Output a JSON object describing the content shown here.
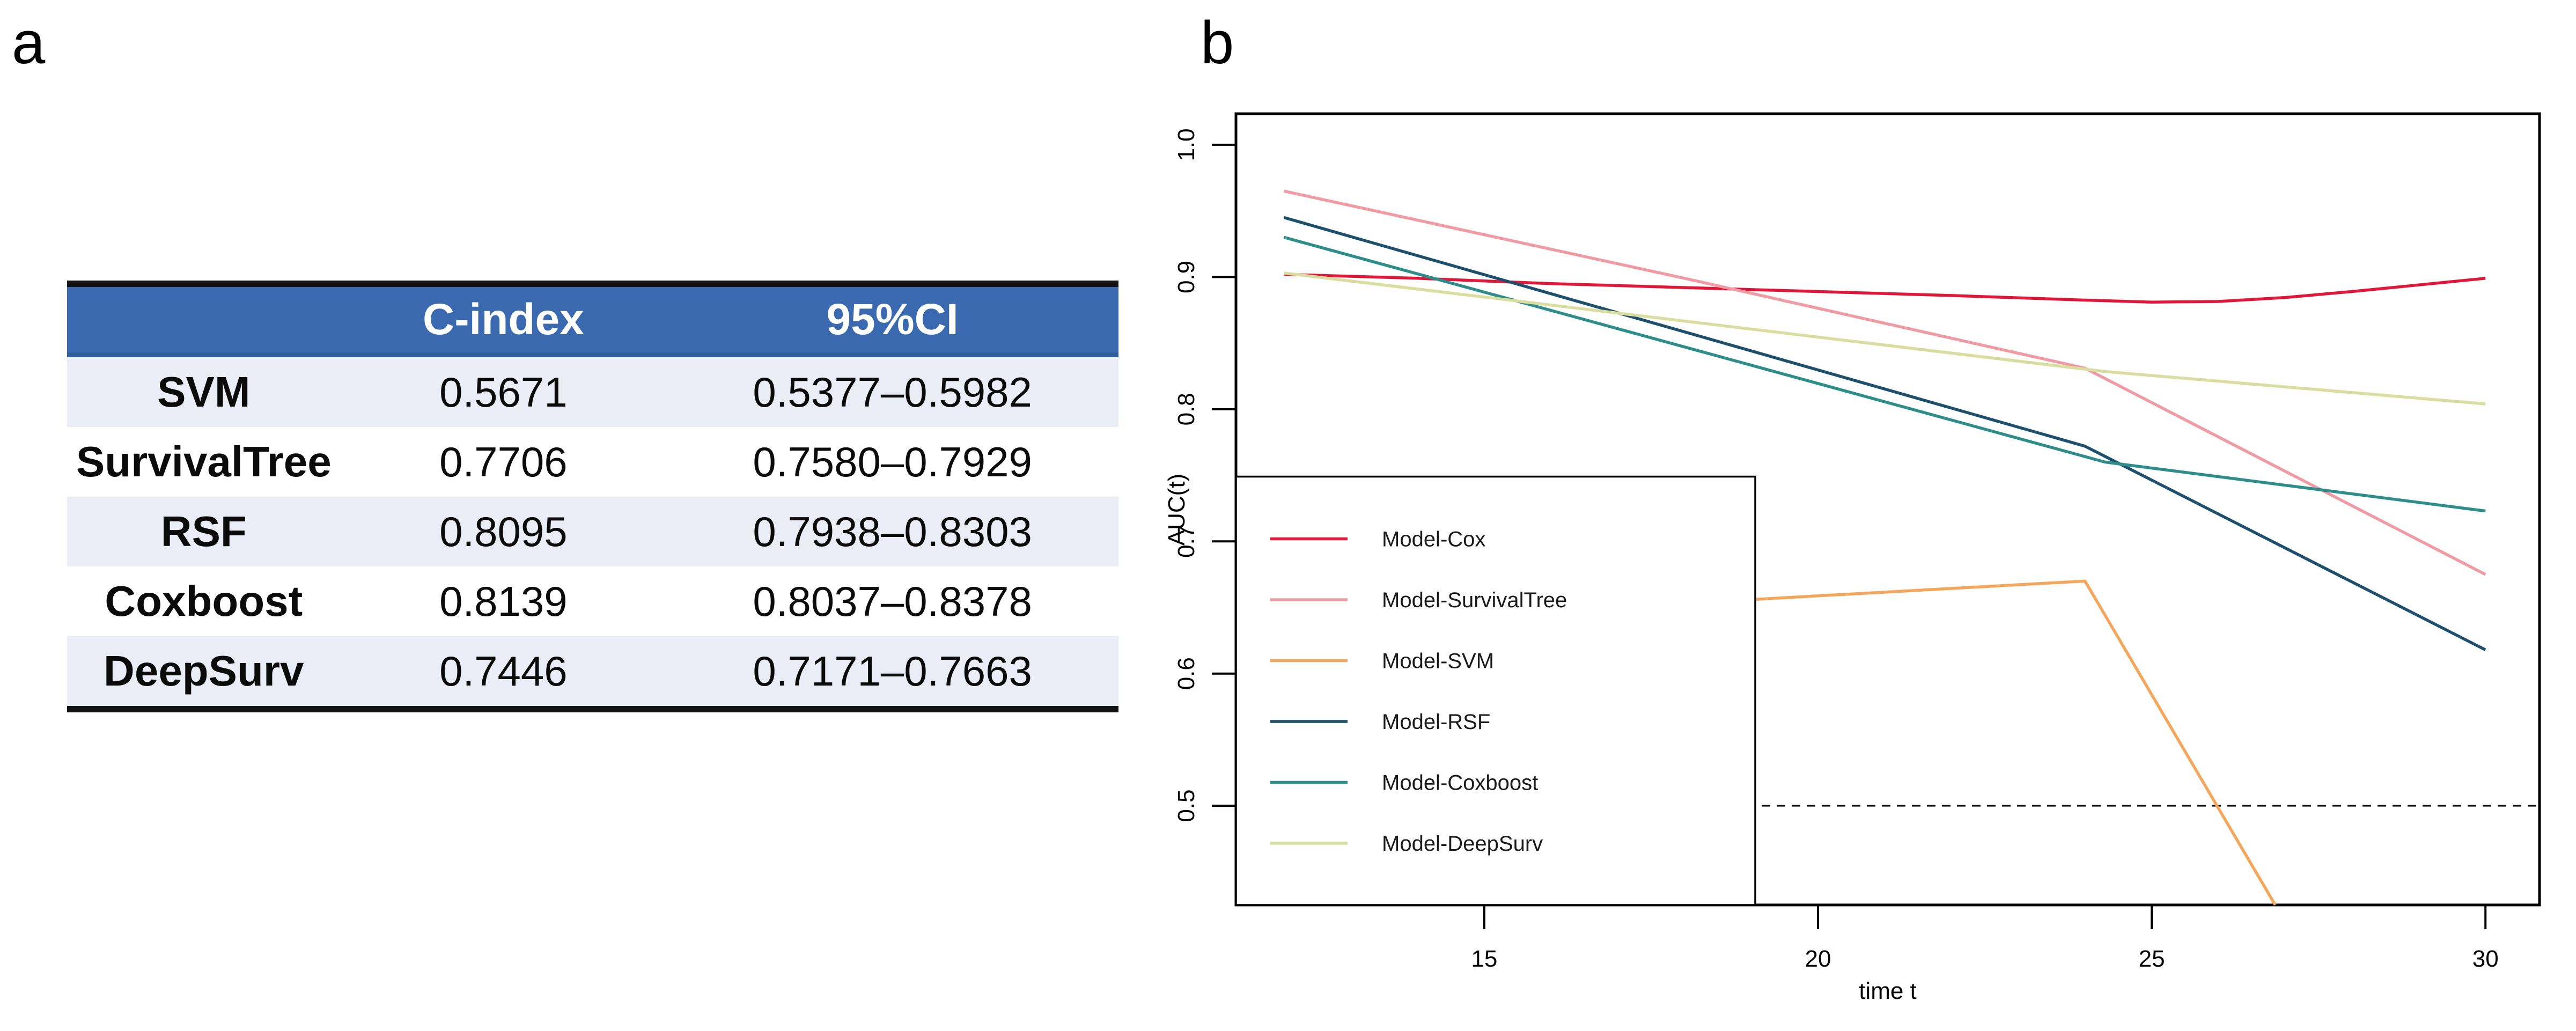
{
  "panels": {
    "a_label": "a",
    "b_label": "b"
  },
  "table": {
    "headers": [
      "",
      "C-index",
      "95%CI"
    ],
    "rows": [
      {
        "model": "SVM",
        "c_index": "0.5671",
        "ci": "0.5377–0.5982"
      },
      {
        "model": "SurvivalTree",
        "c_index": "0.7706",
        "ci": "0.7580–0.7929"
      },
      {
        "model": "RSF",
        "c_index": "0.8095",
        "ci": "0.7938–0.8303"
      },
      {
        "model": "Coxboost",
        "c_index": "0.8139",
        "ci": "0.8037–0.8378"
      },
      {
        "model": "DeepSurv",
        "c_index": "0.7446",
        "ci": "0.7171–0.7663"
      }
    ],
    "colors": {
      "header_bg": "#3A69B0",
      "header_edge": "#2F5D9E",
      "row_alt_bg": "#EAECF6",
      "rule": "#131313"
    }
  },
  "chart_data": {
    "type": "line",
    "title": "",
    "xlabel": "time t",
    "ylabel": "AUC(t)",
    "xlim": [
      11.28,
      30.81
    ],
    "ylim": [
      0.425,
      1.0235
    ],
    "xticks": [
      "15",
      "20",
      "25",
      "30"
    ],
    "xtick_values": [
      15,
      20,
      25,
      30
    ],
    "yticks": [
      "0.5",
      "0.6",
      "0.7",
      "0.8",
      "0.9",
      "1.0"
    ],
    "ytick_values": [
      0.5,
      0.6,
      0.7,
      0.8,
      0.9,
      1.0
    ],
    "grid": "off",
    "baseline": {
      "value": 0.5,
      "style": "dashed",
      "color": "#111111"
    },
    "legend_position": "bottom-left",
    "series": [
      {
        "name": "Model-Cox",
        "color": "#E1173A",
        "x": [
          12,
          14,
          16,
          18,
          20,
          22,
          24,
          25,
          26,
          27,
          28,
          29,
          30
        ],
        "y": [
          0.902,
          0.899,
          0.895,
          0.892,
          0.889,
          0.886,
          0.8825,
          0.881,
          0.8815,
          0.8845,
          0.889,
          0.894,
          0.899
        ]
      },
      {
        "name": "Model-SurvivalTree",
        "color": "#F09AA4",
        "x": [
          12,
          18,
          24,
          30
        ],
        "y": [
          0.965,
          0.899,
          0.831,
          0.675
        ]
      },
      {
        "name": "Model-SVM",
        "color": "#F4A65C",
        "x": [
          19,
          24,
          26.85
        ],
        "y": [
          0.656,
          0.67,
          0.425
        ]
      },
      {
        "name": "Model-RSF",
        "color": "#1D506F",
        "x": [
          12,
          24,
          30
        ],
        "y": [
          0.945,
          0.772,
          0.618
        ]
      },
      {
        "name": "Model-Coxboost",
        "color": "#2D8D8A",
        "x": [
          12,
          24.3,
          30
        ],
        "y": [
          0.93,
          0.76,
          0.723
        ]
      },
      {
        "name": "Model-DeepSurv",
        "color": "#D9DD9F",
        "x": [
          12,
          24.3,
          30
        ],
        "y": [
          0.903,
          0.8285,
          0.804
        ]
      }
    ]
  }
}
